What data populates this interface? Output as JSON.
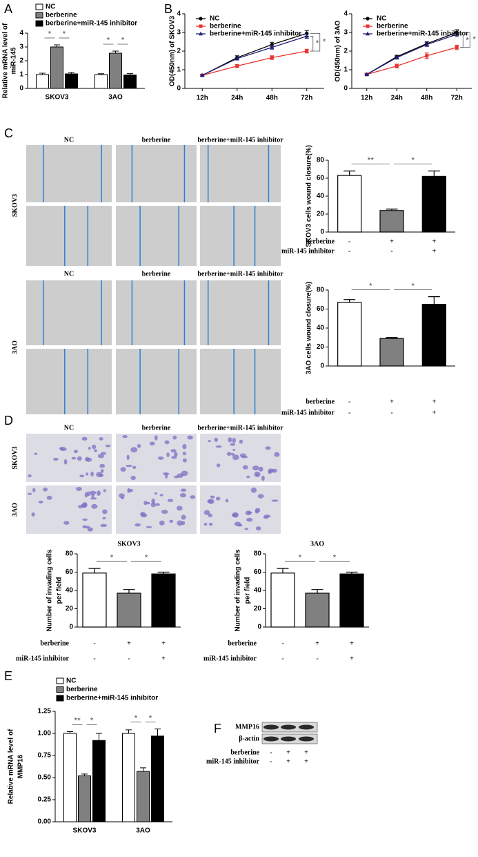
{
  "chart_data": [
    {
      "type": "bar",
      "panel": "A",
      "y_label": [
        "Relative mRNA level of",
        "miR-145"
      ],
      "categories": [
        "SKOV3",
        "3AO"
      ],
      "series": [
        {
          "name": "NC",
          "color": "#ffffff",
          "values": [
            1.0,
            1.0
          ],
          "errors": [
            0.1,
            0.06
          ]
        },
        {
          "name": "berberine",
          "color": "#808080",
          "values": [
            3.0,
            2.55
          ],
          "errors": [
            0.15,
            0.15
          ]
        },
        {
          "name": "berberine+miR-145 inhibitor",
          "color": "#000000",
          "values": [
            1.05,
            0.97
          ],
          "errors": [
            0.1,
            0.1
          ]
        }
      ],
      "ylim": [
        0,
        4
      ],
      "yticks": [
        0,
        1,
        2,
        3,
        4
      ],
      "significance": [
        [
          "*",
          "*"
        ],
        [
          "*",
          "*"
        ]
      ]
    },
    {
      "type": "line",
      "panel": "B",
      "y_label": [
        "OD(450nm) of SKOV3"
      ],
      "categories": [
        "12h",
        "24h",
        "48h",
        "72h"
      ],
      "series": [
        {
          "name": "NC",
          "color": "#000000",
          "marker": "circle",
          "values": [
            0.7,
            1.65,
            2.35,
            2.95
          ],
          "errors": [
            0.05,
            0.1,
            0.12,
            0.15
          ]
        },
        {
          "name": "berberine",
          "color": "#e8322d",
          "marker": "square",
          "values": [
            0.7,
            1.2,
            1.65,
            2.0
          ],
          "errors": [
            0.03,
            0.08,
            0.1,
            0.1
          ]
        },
        {
          "name": "berberine+miR-145 inhibitor",
          "color": "#1f1f7a",
          "marker": "triangle",
          "values": [
            0.7,
            1.6,
            2.2,
            2.8
          ],
          "errors": [
            0.03,
            0.08,
            0.1,
            0.12
          ]
        }
      ],
      "ylim": [
        0,
        4
      ],
      "yticks": [
        0,
        1,
        2,
        3,
        4
      ],
      "significance": [
        "*",
        "*"
      ]
    },
    {
      "type": "line",
      "y_label": [
        "OD(450nm) of 3AO"
      ],
      "categories": [
        "12h",
        "24h",
        "48h",
        "72h"
      ],
      "series": [
        {
          "name": "NC",
          "color": "#000000",
          "marker": "circle",
          "values": [
            0.75,
            1.7,
            2.4,
            3.0
          ],
          "errors": [
            0.05,
            0.08,
            0.1,
            0.15
          ]
        },
        {
          "name": "berberine",
          "color": "#e8322d",
          "marker": "square",
          "values": [
            0.75,
            1.2,
            1.75,
            2.2
          ],
          "errors": [
            0.03,
            0.1,
            0.15,
            0.12
          ]
        },
        {
          "name": "berberine+miR-145 inhibitor",
          "color": "#1f1f7a",
          "marker": "triangle",
          "values": [
            0.75,
            1.65,
            2.35,
            2.9
          ],
          "errors": [
            0.03,
            0.08,
            0.1,
            0.12
          ]
        }
      ],
      "ylim": [
        0,
        4
      ],
      "yticks": [
        0,
        1,
        2,
        3,
        4
      ],
      "significance": [
        "*",
        "*"
      ]
    },
    {
      "type": "bar",
      "y_label": [
        "SKOV3 cells wound closure(%)"
      ],
      "values": [
        63,
        24,
        62
      ],
      "errors": [
        5,
        1.5,
        6
      ],
      "colors": [
        "#ffffff",
        "#808080",
        "#000000"
      ],
      "ylim": [
        0,
        80
      ],
      "yticks": [
        0,
        20,
        40,
        60,
        80
      ],
      "significance": [
        "**",
        "*"
      ],
      "treatments": [
        {
          "name": "berberine",
          "marks": [
            "-",
            "+",
            "+"
          ]
        },
        {
          "name": "miR-145 inhibitor",
          "marks": [
            "-",
            "-",
            "+"
          ]
        }
      ]
    },
    {
      "type": "bar",
      "y_label": [
        "3AO cells wound closure(%)"
      ],
      "values": [
        67,
        29,
        65
      ],
      "errors": [
        3,
        1,
        8
      ],
      "colors": [
        "#ffffff",
        "#808080",
        "#000000"
      ],
      "ylim": [
        0,
        80
      ],
      "yticks": [
        0,
        20,
        40,
        60,
        80
      ],
      "significance": [
        "*",
        "*"
      ],
      "treatments": [
        {
          "name": "berberine",
          "marks": [
            "-",
            "+",
            "+"
          ]
        },
        {
          "name": "miR-145 inhibitor",
          "marks": [
            "-",
            "-",
            "+"
          ]
        }
      ]
    },
    {
      "type": "bar",
      "title": "SKOV3",
      "y_label": [
        "Number of invading cells",
        "per field"
      ],
      "values": [
        59,
        37,
        58
      ],
      "errors": [
        5,
        4,
        2
      ],
      "colors": [
        "#ffffff",
        "#808080",
        "#000000"
      ],
      "ylim": [
        0,
        80
      ],
      "yticks": [
        0,
        20,
        40,
        60,
        80
      ],
      "significance": [
        "*",
        "*"
      ],
      "treatments": [
        {
          "name": "berberine",
          "marks": [
            "-",
            "+",
            "+"
          ]
        },
        {
          "name": "miR-145 inhibitor",
          "marks": [
            "-",
            "-",
            "+"
          ]
        }
      ]
    },
    {
      "type": "bar",
      "title": "3AO",
      "y_label": [
        "Number of invading cells",
        "per field"
      ],
      "values": [
        59,
        37,
        58
      ],
      "errors": [
        5,
        4,
        2
      ],
      "colors": [
        "#ffffff",
        "#808080",
        "#000000"
      ],
      "ylim": [
        0,
        80
      ],
      "yticks": [
        0,
        20,
        40,
        60,
        80
      ],
      "significance": [
        "*",
        "*"
      ],
      "treatments": [
        {
          "name": "berberine",
          "marks": [
            "-",
            "+",
            "+"
          ]
        },
        {
          "name": "miR-145 inhibitor",
          "marks": [
            "-",
            "-",
            "+"
          ]
        }
      ]
    },
    {
      "type": "bar",
      "panel": "E",
      "y_label": [
        "Relative mRNA level of",
        "MMP16"
      ],
      "categories": [
        "SKOV3",
        "3AO"
      ],
      "series": [
        {
          "name": "NC",
          "color": "#ffffff",
          "values": [
            1.0,
            1.0
          ],
          "errors": [
            0.02,
            0.04
          ]
        },
        {
          "name": "berberine",
          "color": "#808080",
          "values": [
            0.52,
            0.57
          ],
          "errors": [
            0.02,
            0.04
          ]
        },
        {
          "name": "berberine+miR-145 inhibitor",
          "color": "#000000",
          "values": [
            0.92,
            0.97
          ],
          "errors": [
            0.08,
            0.08
          ]
        }
      ],
      "ylim": [
        0,
        1.25
      ],
      "yticks": [
        {
          "value": 0,
          "label": "0.00"
        },
        {
          "value": 0.25,
          "label": "0.25"
        },
        {
          "value": 0.5,
          "label": "0.50"
        },
        {
          "value": 0.75,
          "label": "0.75"
        },
        {
          "value": 1.0,
          "label": "1.00"
        },
        {
          "value": 1.25,
          "label": "1.25"
        }
      ],
      "significance": [
        [
          "**",
          "*"
        ],
        [
          "*",
          "*"
        ]
      ]
    }
  ],
  "wound_healing": {
    "panel": "C",
    "blocks": [
      {
        "columns": [
          "NC",
          "berberine",
          "berberine+miR-145 inhibitor"
        ],
        "row": "SKOV3"
      },
      {
        "columns": [
          "NC",
          "berberine",
          "berberine+miR-145 inhibitor"
        ],
        "row": "3AO"
      }
    ]
  },
  "invasion": {
    "panel": "D",
    "columns": [
      "NC",
      "berberine",
      "berberine+miR-145 inhibitor"
    ],
    "rows": [
      "SKOV3",
      "3AO"
    ]
  },
  "western_blot": {
    "panel": "F",
    "bands": [
      "MMP16",
      "β-actin"
    ],
    "treatments": [
      {
        "name": "berberine",
        "marks": [
          "-",
          "+",
          "+"
        ]
      },
      {
        "name": "miR-145 inhibitor",
        "marks": [
          "-",
          "+",
          "+"
        ]
      }
    ]
  }
}
